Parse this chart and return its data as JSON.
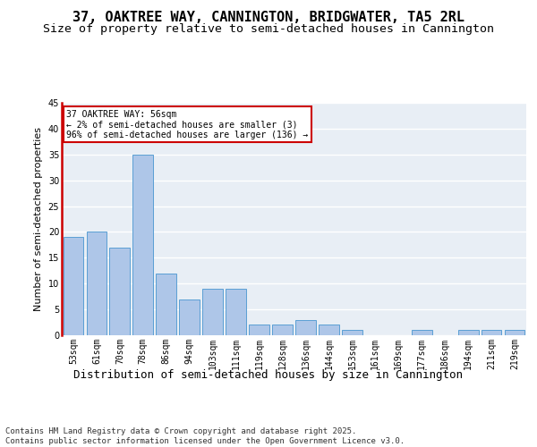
{
  "title": "37, OAKTREE WAY, CANNINGTON, BRIDGWATER, TA5 2RL",
  "subtitle": "Size of property relative to semi-detached houses in Cannington",
  "xlabel": "Distribution of semi-detached houses by size in Cannington",
  "ylabel": "Number of semi-detached properties",
  "categories": [
    "53sqm",
    "61sqm",
    "70sqm",
    "78sqm",
    "86sqm",
    "94sqm",
    "103sqm",
    "111sqm",
    "119sqm",
    "128sqm",
    "136sqm",
    "144sqm",
    "153sqm",
    "161sqm",
    "169sqm",
    "177sqm",
    "186sqm",
    "194sqm",
    "211sqm",
    "219sqm"
  ],
  "values": [
    19,
    20,
    17,
    35,
    12,
    7,
    9,
    9,
    2,
    2,
    3,
    2,
    1,
    0,
    0,
    1,
    0,
    1,
    1,
    1
  ],
  "bar_color": "#aec6e8",
  "bar_edge_color": "#5a9fd4",
  "marker_color": "#cc0000",
  "annotation_text": "37 OAKTREE WAY: 56sqm\n← 2% of semi-detached houses are smaller (3)\n96% of semi-detached houses are larger (136) →",
  "annotation_box_color": "#ffffff",
  "annotation_box_edge": "#cc0000",
  "ylim": [
    0,
    45
  ],
  "yticks": [
    0,
    5,
    10,
    15,
    20,
    25,
    30,
    35,
    40,
    45
  ],
  "background_color": "#e8eef5",
  "grid_color": "#ffffff",
  "footer": "Contains HM Land Registry data © Crown copyright and database right 2025.\nContains public sector information licensed under the Open Government Licence v3.0.",
  "title_fontsize": 11,
  "subtitle_fontsize": 9.5,
  "xlabel_fontsize": 9,
  "ylabel_fontsize": 8,
  "tick_fontsize": 7,
  "footer_fontsize": 6.5
}
